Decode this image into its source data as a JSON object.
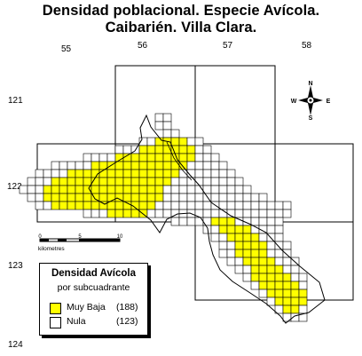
{
  "title_line1": "Densidad poblacional. Especie Avícola.",
  "title_line2": "Caibarién. Villa Clara.",
  "grid_x_labels": [
    "55",
    "56",
    "57",
    "58"
  ],
  "grid_y_labels": [
    "121",
    "122",
    "123",
    "124"
  ],
  "compass": {
    "n": "N",
    "s": "S",
    "e": "E",
    "w": "W"
  },
  "scale": {
    "zero": "0",
    "mid": "5",
    "end": "10",
    "unit": "kilometres"
  },
  "legend": {
    "title": "Densidad Avícola",
    "subtitle": "por subcuadrante",
    "items": [
      {
        "label": "Muy Baja",
        "count": "(188)",
        "color": "#ffff00"
      },
      {
        "label": "Nula",
        "count": "(123)",
        "color": "#ffffff"
      }
    ]
  },
  "colors": {
    "high": "#ffff00",
    "none": "#ffffff",
    "lines": "#000000"
  }
}
